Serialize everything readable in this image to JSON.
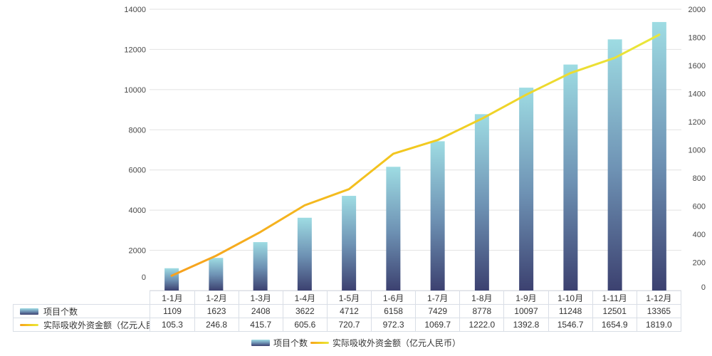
{
  "chart_data": {
    "type": "combo-bar-line",
    "title": "",
    "categories": [
      "1-1月",
      "1-2月",
      "1-3月",
      "1-4月",
      "1-5月",
      "1-6月",
      "1-7月",
      "1-8月",
      "1-9月",
      "1-10月",
      "1-11月",
      "1-12月"
    ],
    "series": [
      {
        "name": "项目个数",
        "type": "bar",
        "axis": "left",
        "values": [
          1109,
          1623,
          2408,
          3622,
          4712,
          6158,
          7429,
          8778,
          10097,
          11248,
          12501,
          13365
        ],
        "values_text": [
          "1109",
          "1623",
          "2408",
          "3622",
          "4712",
          "6158",
          "7429",
          "8778",
          "10097",
          "11248",
          "12501",
          "13365"
        ]
      },
      {
        "name": "实际吸收外资金额（亿元人民币）",
        "type": "line",
        "axis": "right",
        "values": [
          105.3,
          246.8,
          415.7,
          605.6,
          720.7,
          972.3,
          1069.7,
          1222.0,
          1392.8,
          1546.7,
          1654.9,
          1819.0
        ],
        "values_text": [
          "105.3",
          "246.8",
          "415.7",
          "605.6",
          "720.7",
          "972.3",
          "1069.7",
          "1222.0",
          "1392.8",
          "1546.7",
          "1654.9",
          "1819.0"
        ]
      }
    ],
    "left_axis": {
      "min": 0,
      "max": 14000,
      "step": 2000,
      "labels": [
        "0",
        "2000",
        "4000",
        "6000",
        "8000",
        "10000",
        "12000",
        "14000"
      ]
    },
    "right_axis": {
      "min": 0,
      "max": 2000,
      "step": 200,
      "labels": [
        "0",
        "200",
        "400",
        "600",
        "800",
        "1000",
        "1200",
        "1400",
        "1600",
        "1800",
        "2000"
      ]
    },
    "grid": true,
    "legend_position": "bottom",
    "colors": {
      "bar_gradient": [
        "#9edce3",
        "#6e92b4",
        "#3c4170"
      ],
      "line_gradient": [
        "#f7a11e",
        "#f2c91f",
        "#e9e73c"
      ],
      "gridline": "#e2e2e2",
      "table_border": "#d9dee6",
      "axis_text": "#474747",
      "table_text": "#333333",
      "background": "#ffffff"
    }
  }
}
